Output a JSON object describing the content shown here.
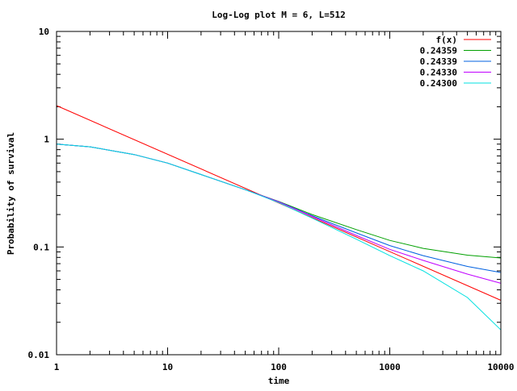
{
  "chart_data": {
    "type": "line",
    "title": "Log-Log plot M = 6, L=512",
    "xlabel": "time",
    "ylabel": "Probability of survival",
    "xscale": "log",
    "yscale": "log",
    "xlim": [
      1,
      10000
    ],
    "ylim": [
      0.01,
      10
    ],
    "xticks": [
      "1",
      "10",
      "100",
      "1000",
      "10000"
    ],
    "yticks": [
      "0.01",
      "0.1",
      "1",
      "10"
    ],
    "grid": false,
    "legend_position": "top-right",
    "series": [
      {
        "name": "f(x)",
        "color": "#ff0000",
        "x": [
          1,
          10000
        ],
        "y": [
          2.05,
          0.032
        ]
      },
      {
        "name": "0.24359",
        "color": "#00a000",
        "x": [
          1,
          2,
          5,
          10,
          20,
          50,
          100,
          200,
          500,
          1000,
          2000,
          5000,
          10000
        ],
        "y": [
          0.9,
          0.85,
          0.72,
          0.6,
          0.47,
          0.34,
          0.265,
          0.2,
          0.145,
          0.115,
          0.097,
          0.084,
          0.079
        ]
      },
      {
        "name": "0.24339",
        "color": "#0060e0",
        "x": [
          1,
          2,
          5,
          10,
          20,
          50,
          100,
          200,
          500,
          1000,
          2000,
          5000,
          10000
        ],
        "y": [
          0.9,
          0.85,
          0.72,
          0.6,
          0.47,
          0.34,
          0.263,
          0.195,
          0.135,
          0.103,
          0.083,
          0.066,
          0.058
        ]
      },
      {
        "name": "0.24330",
        "color": "#c000ff",
        "x": [
          1,
          2,
          5,
          10,
          20,
          50,
          100,
          200,
          500,
          1000,
          2000,
          5000,
          10000
        ],
        "y": [
          0.9,
          0.85,
          0.72,
          0.6,
          0.47,
          0.34,
          0.262,
          0.192,
          0.128,
          0.095,
          0.075,
          0.056,
          0.046
        ]
      },
      {
        "name": "0.24300",
        "color": "#00e0e0",
        "x": [
          1,
          2,
          5,
          10,
          20,
          50,
          100,
          200,
          500,
          1000,
          2000,
          5000,
          10000
        ],
        "y": [
          0.9,
          0.85,
          0.72,
          0.6,
          0.47,
          0.34,
          0.258,
          0.185,
          0.118,
          0.083,
          0.06,
          0.034,
          0.017
        ]
      }
    ]
  }
}
